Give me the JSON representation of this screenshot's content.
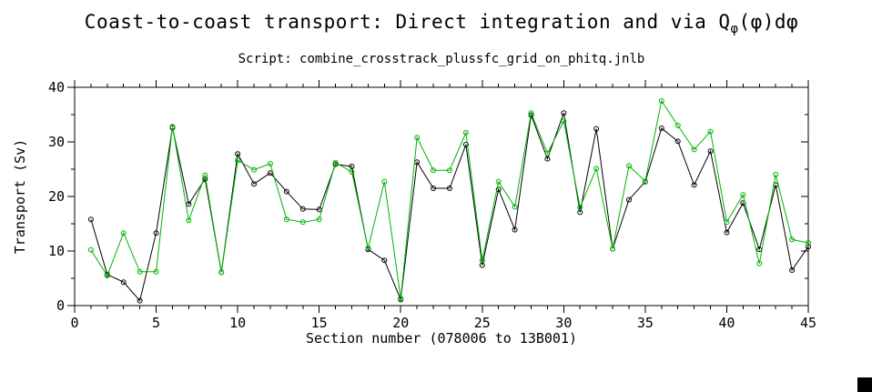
{
  "chart_data": {
    "type": "line",
    "title_full": "Coast-to-coast transport: Direct integration and via Qφ(φ)dφ",
    "title_prefix": "Coast-to-coast transport: Direct integration and via Q",
    "title_subscript": "φ",
    "title_suffix": "(φ)dφ",
    "subtitle": "Script: combine_crosstrack_plussfc_grid_on_phitq.jnlb",
    "xlabel": "Section number (078006 to 13B001)",
    "ylabel": "Transport (Sv)",
    "xlim": [
      0,
      45
    ],
    "ylim": [
      0,
      40
    ],
    "x_major_tick_step": 5,
    "x_minor_tick_step": 1,
    "y_major_tick_step": 10,
    "y_minor_tick_step": 5,
    "x_tick_labels": [
      "0",
      "5",
      "10",
      "15",
      "20",
      "25",
      "30",
      "35",
      "40",
      "45"
    ],
    "y_tick_labels": [
      "0",
      "10",
      "20",
      "30",
      "40"
    ],
    "grid": false,
    "legend": "none",
    "x": [
      1,
      2,
      3,
      4,
      5,
      6,
      7,
      8,
      9,
      10,
      11,
      12,
      13,
      14,
      15,
      16,
      17,
      18,
      19,
      20,
      21,
      22,
      23,
      24,
      25,
      26,
      27,
      28,
      29,
      30,
      31,
      32,
      33,
      34,
      35,
      36,
      37,
      38,
      39,
      40,
      41,
      42,
      43,
      44,
      45
    ],
    "series": [
      {
        "name": "Direct integration",
        "id": "direct-integration",
        "color": "#000000",
        "marker": "open-circle",
        "values": [
          15.8,
          5.7,
          4.3,
          0.9,
          13.3,
          32.6,
          18.6,
          23.2,
          6.1,
          27.8,
          22.3,
          24.3,
          20.9,
          17.7,
          17.6,
          25.9,
          25.5,
          10.3,
          8.3,
          1.1,
          26.3,
          21.5,
          21.5,
          29.5,
          7.4,
          21.3,
          13.9,
          34.9,
          26.9,
          35.3,
          17.1,
          32.4,
          10.4,
          19.4,
          22.7,
          32.5,
          30.1,
          22.1,
          28.3,
          13.4,
          18.8,
          10.3,
          22.1,
          6.5,
          10.8
        ]
      },
      {
        "name": "via Qφ(φ)dφ",
        "id": "via-qphi",
        "color": "#00b400",
        "marker": "open-circle",
        "values": [
          10.2,
          5.5,
          13.3,
          6.2,
          6.2,
          32.8,
          15.6,
          23.9,
          6.1,
          26.6,
          24.9,
          26.0,
          15.8,
          15.3,
          15.8,
          26.2,
          24.5,
          10.5,
          22.7,
          1.3,
          30.8,
          24.8,
          24.8,
          31.7,
          8.3,
          22.7,
          18.1,
          35.3,
          27.9,
          33.8,
          18.0,
          25.1,
          10.4,
          25.6,
          22.8,
          37.5,
          33.0,
          28.6,
          31.9,
          15.3,
          20.3,
          7.7,
          24.0,
          12.1,
          11.5
        ]
      }
    ]
  },
  "decorations": {
    "background": "#ffffff",
    "axis_color": "#000000",
    "corner_square_color": "#000000"
  }
}
